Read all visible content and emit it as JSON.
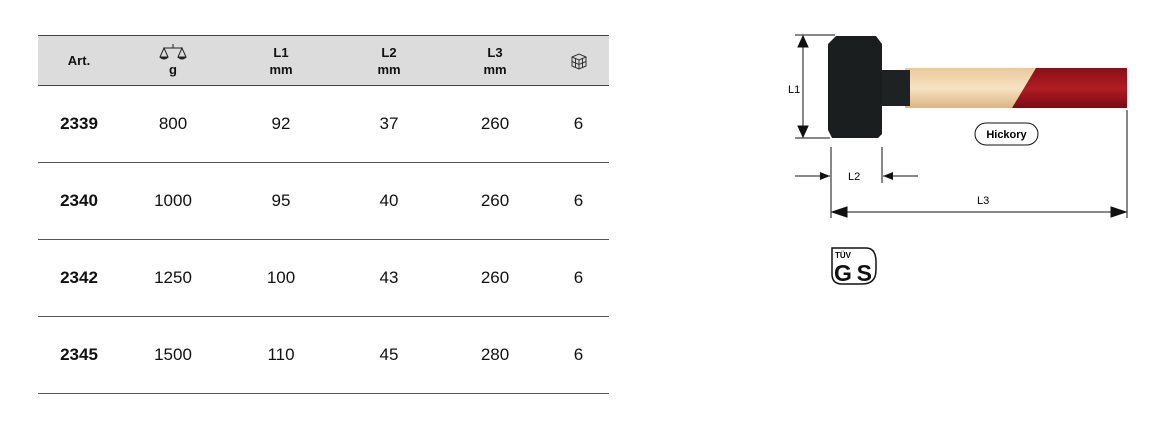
{
  "table": {
    "headers": [
      {
        "line1": "Art.",
        "line2": ""
      },
      {
        "icon": "scale-icon",
        "line2": "g"
      },
      {
        "line1": "L1",
        "line2": "mm"
      },
      {
        "line1": "L2",
        "line2": "mm"
      },
      {
        "line1": "L3",
        "line2": "mm"
      },
      {
        "icon": "package-cube-icon",
        "line2": ""
      }
    ],
    "rows": [
      [
        "2339",
        "800",
        "92",
        "37",
        "260",
        "6"
      ],
      [
        "2340",
        "1000",
        "95",
        "40",
        "260",
        "6"
      ],
      [
        "2342",
        "1250",
        "100",
        "43",
        "260",
        "6"
      ],
      [
        "2345",
        "1500",
        "110",
        "45",
        "280",
        "6"
      ]
    ]
  },
  "diagram": {
    "l1": "L1",
    "l2": "L2",
    "l3": "L3",
    "handle_label": "Hickory"
  },
  "certification": {
    "logo": "TÜV GS"
  },
  "colors": {
    "header_bg": "#dcdcdc",
    "head": "#1a1c1c",
    "handle_wood": "#f1d8b0",
    "handle_grip": "#a3141c"
  }
}
